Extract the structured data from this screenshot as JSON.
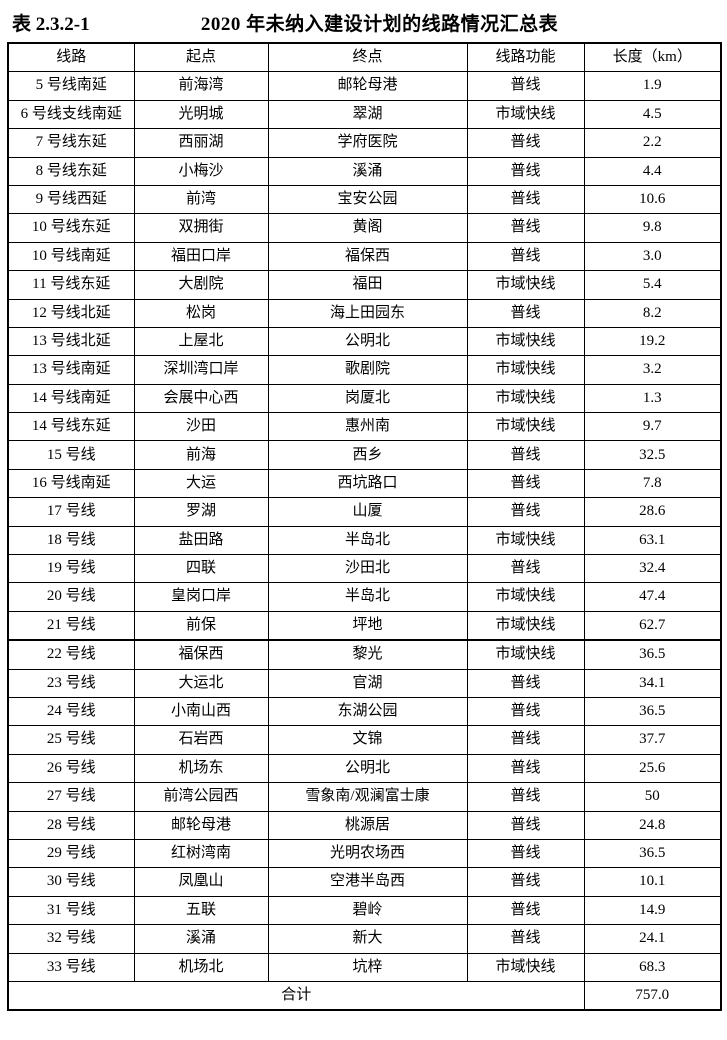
{
  "page": {
    "table_label": "表 2.3.2-1",
    "title": "2020 年未纳入建设计划的线路情况汇总表"
  },
  "table": {
    "headers": [
      "线路",
      "起点",
      "终点",
      "线路功能",
      "长度（km）"
    ],
    "rows": [
      [
        "5 号线南延",
        "前海湾",
        "邮轮母港",
        "普线",
        "1.9"
      ],
      [
        "6 号线支线南延",
        "光明城",
        "翠湖",
        "市域快线",
        "4.5"
      ],
      [
        "7 号线东延",
        "西丽湖",
        "学府医院",
        "普线",
        "2.2"
      ],
      [
        "8 号线东延",
        "小梅沙",
        "溪涌",
        "普线",
        "4.4"
      ],
      [
        "9 号线西延",
        "前湾",
        "宝安公园",
        "普线",
        "10.6"
      ],
      [
        "10 号线东延",
        "双拥街",
        "黄阁",
        "普线",
        "9.8"
      ],
      [
        "10 号线南延",
        "福田口岸",
        "福保西",
        "普线",
        "3.0"
      ],
      [
        "11 号线东延",
        "大剧院",
        "福田",
        "市域快线",
        "5.4"
      ],
      [
        "12 号线北延",
        "松岗",
        "海上田园东",
        "普线",
        "8.2"
      ],
      [
        "13 号线北延",
        "上屋北",
        "公明北",
        "市域快线",
        "19.2"
      ],
      [
        "13 号线南延",
        "深圳湾口岸",
        "歌剧院",
        "市域快线",
        "3.2"
      ],
      [
        "14 号线南延",
        "会展中心西",
        "岗厦北",
        "市域快线",
        "1.3"
      ],
      [
        "14 号线东延",
        "沙田",
        "惠州南",
        "市域快线",
        "9.7"
      ],
      [
        "15 号线",
        "前海",
        "西乡",
        "普线",
        "32.5"
      ],
      [
        "16 号线南延",
        "大运",
        "西坑路口",
        "普线",
        "7.8"
      ],
      [
        "17 号线",
        "罗湖",
        "山厦",
        "普线",
        "28.6"
      ],
      [
        "18 号线",
        "盐田路",
        "半岛北",
        "市域快线",
        "63.1"
      ],
      [
        "19 号线",
        "四联",
        "沙田北",
        "普线",
        "32.4"
      ],
      [
        "20 号线",
        "皇岗口岸",
        "半岛北",
        "市域快线",
        "47.4"
      ],
      [
        "21 号线",
        "前保",
        "坪地",
        "市域快线",
        "62.7"
      ],
      [
        "22 号线",
        "福保西",
        "黎光",
        "市域快线",
        "36.5"
      ],
      [
        "23 号线",
        "大运北",
        "官湖",
        "普线",
        "34.1"
      ],
      [
        "24 号线",
        "小南山西",
        "东湖公园",
        "普线",
        "36.5"
      ],
      [
        "25 号线",
        "石岩西",
        "文锦",
        "普线",
        "37.7"
      ],
      [
        "26 号线",
        "机场东",
        "公明北",
        "普线",
        "25.6"
      ],
      [
        "27 号线",
        "前湾公园西",
        "雪象南/观澜富士康",
        "普线",
        "50"
      ],
      [
        "28 号线",
        "邮轮母港",
        "桃源居",
        "普线",
        "24.8"
      ],
      [
        "29 号线",
        "红树湾南",
        "光明农场西",
        "普线",
        "36.5"
      ],
      [
        "30 号线",
        "凤凰山",
        "空港半岛西",
        "普线",
        "10.1"
      ],
      [
        "31 号线",
        "五联",
        "碧岭",
        "普线",
        "14.9"
      ],
      [
        "32 号线",
        "溪涌",
        "新大",
        "普线",
        "24.1"
      ],
      [
        "33 号线",
        "机场北",
        "坑梓",
        "市域快线",
        "68.3"
      ]
    ],
    "total": {
      "label": "合计",
      "value": "757.0"
    }
  }
}
